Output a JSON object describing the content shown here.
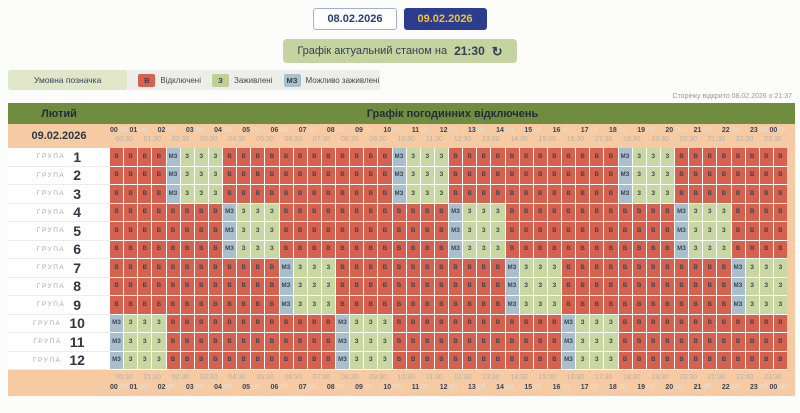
{
  "tabs": {
    "items": [
      {
        "label": "08.02.2026",
        "active": false
      },
      {
        "label": "09.02.2026",
        "active": true
      }
    ]
  },
  "status": {
    "prefix": "Графік актуальний станом на",
    "time": "21:30",
    "refresh_icon": "↻"
  },
  "legend": {
    "title": "Умовна позначка",
    "items": [
      {
        "code": "В",
        "label": "Відключені",
        "color": "#d5614e"
      },
      {
        "code": "З",
        "label": "Заживлені",
        "color": "#bed094"
      },
      {
        "code": "МЗ",
        "label": "Можливо заживлені",
        "color": "#a9bfcc"
      }
    ]
  },
  "opened_note": "Сторінку відкрито 08.02.2026 о 21:37",
  "colors": {
    "active_tab_bg": "#2c3d8f",
    "active_tab_text": "#f1c232",
    "table_header": "#708c3e",
    "time_band": "#f6cba4",
    "cell_off": "#d5614e",
    "cell_on": "#c9d8a2",
    "cell_maybe": "#a9bfcc",
    "status_bg": "#c4d3a0"
  },
  "table": {
    "month": "Лютий",
    "title": "Графік погодинних відключень",
    "date": "09.02.2026",
    "group_label": "ГРУПА",
    "hour_labels": [
      "00:00",
      "01:00",
      "02:00",
      "03:00",
      "04:00",
      "05:00",
      "06:00",
      "07:00",
      "08:00",
      "09:00",
      "10:00",
      "11:00",
      "12:00",
      "13:00",
      "14:00",
      "15:00",
      "16:00",
      "17:00",
      "18:00",
      "19:00",
      "20:00",
      "21:00",
      "22:00",
      "23:00",
      "00:00"
    ],
    "half_labels": [
      "00:30",
      "01:30",
      "02:30",
      "03:30",
      "04:30",
      "05:30",
      "06:30",
      "07:30",
      "08:30",
      "09:30",
      "10:30",
      "11:30",
      "12:30",
      "13:30",
      "14:30",
      "15:30",
      "16:30",
      "17:30",
      "18:30",
      "19:30",
      "20:30",
      "21:30",
      "22:30",
      "23:30"
    ],
    "cell_codes": {
      "V": {
        "label": "В",
        "color": "#d5614e"
      },
      "Z": {
        "label": "З",
        "color": "#c9d8a2"
      },
      "M": {
        "label": "МЗ",
        "color": "#a9bfcc"
      }
    },
    "groups": [
      {
        "num": "1",
        "cells": "VVVVMZZZVVVVVVVVVVVVMZZZVVVVVVVVVVVVMZZZVVVVVVVV"
      },
      {
        "num": "2",
        "cells": "VVVVMZZZVVVVVVVVVVVVMZZZVVVVVVVVVVVVMZZZVVVVVVVV"
      },
      {
        "num": "3",
        "cells": "VVVVMZZZVVVVVVVVVVVVMZZZVVVVVVVVVVVVMZZZVVVVVVVV"
      },
      {
        "num": "4",
        "cells": "VVVVVVVVMZZZVVVVVVVVVVVVMZZZVVVVVVVVVVVVMZZZVVVV"
      },
      {
        "num": "5",
        "cells": "VVVVVVVVMZZZVVVVVVVVVVVVMZZZVVVVVVVVVVVVMZZZVVVV"
      },
      {
        "num": "6",
        "cells": "VVVVVVVVMZZZVVVVVVVVVVVVMZZZVVVVVVVVVVVVMZZZVVVV"
      },
      {
        "num": "7",
        "cells": "VVVVVVVVVVVVMZZZVVVVVVVVVVVVMZZZVVVVVVVVVVVVMZZZ"
      },
      {
        "num": "8",
        "cells": "VVVVVVVVVVVVMZZZVVVVVVVVVVVVMZZZVVVVVVVVVVVVMZZZ"
      },
      {
        "num": "9",
        "cells": "VVVVVVVVVVVVMZZZVVVVVVVVVVVVMZZZVVVVVVVVVVVVMZZZ"
      },
      {
        "num": "10",
        "cells": "MZZZVVVVVVVVVVVVMZZZVVVVVVVVVVVVMZZZVVVVVVVVVVVV"
      },
      {
        "num": "11",
        "cells": "MZZZVVVVVVVVVVVVMZZZVVVVVVVVVVVVMZZZVVVVVVVVVVVV"
      },
      {
        "num": "12",
        "cells": "MZZZVVVVVVVVVVVVMZZZVVVVVVVVVVVVMZZZVVVVVVVVVVVV"
      }
    ]
  }
}
